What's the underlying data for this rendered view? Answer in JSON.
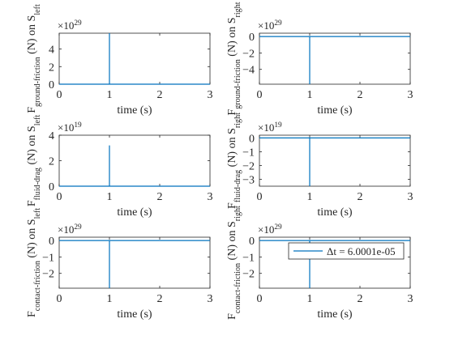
{
  "figure": {
    "background": "#ffffff",
    "line_color": "#0072bd",
    "axis_color": "#262626"
  },
  "chart_data": [
    {
      "type": "line",
      "panel": "left-ground-friction",
      "ylabel": "F_ground-friction (N) on S_left",
      "xlabel": "time (s)",
      "multiplier": "×10^29",
      "xlim": [
        0,
        3
      ],
      "ylim": [
        0,
        5.8
      ],
      "xticks": [
        0,
        1,
        2,
        3
      ],
      "yticks": [
        0,
        2,
        4
      ],
      "series": [
        {
          "x": [
            0,
            1.0,
            1.0,
            1.0,
            3
          ],
          "y": [
            0,
            0,
            5.8,
            0,
            0
          ]
        }
      ]
    },
    {
      "type": "line",
      "panel": "right-ground-friction",
      "ylabel": "F_ground-friction (N) on S_right",
      "xlabel": "time (s)",
      "multiplier": "×10^29",
      "xlim": [
        0,
        3
      ],
      "ylim": [
        -5.8,
        0.4
      ],
      "xticks": [
        0,
        1,
        2,
        3
      ],
      "yticks": [
        -4,
        -2,
        0
      ],
      "series": [
        {
          "x": [
            0,
            1.0,
            1.0,
            1.0,
            3
          ],
          "y": [
            0,
            0,
            -5.8,
            0,
            0
          ]
        }
      ]
    },
    {
      "type": "line",
      "panel": "left-fluid-drag",
      "ylabel": "F_fluid-drag (N) on S_left",
      "xlabel": "time (s)",
      "multiplier": "×10^19",
      "xlim": [
        0,
        3
      ],
      "ylim": [
        0,
        4
      ],
      "xticks": [
        0,
        1,
        2,
        3
      ],
      "yticks": [
        0,
        2,
        4
      ],
      "series": [
        {
          "x": [
            0,
            1.0,
            1.0,
            1.0,
            3
          ],
          "y": [
            0,
            0,
            3.2,
            0,
            0
          ]
        }
      ]
    },
    {
      "type": "line",
      "panel": "right-fluid-drag",
      "ylabel": "F_fluid-drag (N) on S_right",
      "xlabel": "time (s)",
      "multiplier": "×10^19",
      "xlim": [
        0,
        3
      ],
      "ylim": [
        -3.5,
        0.2
      ],
      "xticks": [
        0,
        1,
        2,
        3
      ],
      "yticks": [
        -3,
        -2,
        -1,
        0
      ],
      "series": [
        {
          "x": [
            0,
            1.0,
            1.0,
            1.0,
            3
          ],
          "y": [
            0,
            0,
            -3.5,
            0,
            0
          ]
        }
      ]
    },
    {
      "type": "line",
      "panel": "left-contact-friction",
      "ylabel": "F_contact-friction (N) on S_left",
      "xlabel": "time (s)",
      "multiplier": "×10^29",
      "xlim": [
        0,
        3
      ],
      "ylim": [
        -2.9,
        0.2
      ],
      "xticks": [
        0,
        1,
        2,
        3
      ],
      "yticks": [
        -2,
        -1,
        0
      ],
      "series": [
        {
          "x": [
            0,
            1.0,
            1.0,
            1.0,
            3
          ],
          "y": [
            0,
            0,
            -2.9,
            0,
            0
          ]
        }
      ]
    },
    {
      "type": "line",
      "panel": "right-contact-friction",
      "ylabel": "F_contact-friction (N) on S_right",
      "xlabel": "time (s)",
      "multiplier": "×10^29",
      "xlim": [
        0,
        3
      ],
      "ylim": [
        -2.9,
        0.2
      ],
      "xticks": [
        0,
        1,
        2,
        3
      ],
      "yticks": [
        -2,
        -1,
        0
      ],
      "legend": {
        "entries": [
          "Δt = 6.0001e-05"
        ],
        "location": "top-right"
      },
      "series": [
        {
          "name": "Δt = 6.0001e-05",
          "x": [
            0,
            1.0,
            1.0,
            1.0,
            3
          ],
          "y": [
            0,
            0,
            -2.9,
            0,
            0
          ]
        }
      ]
    }
  ]
}
